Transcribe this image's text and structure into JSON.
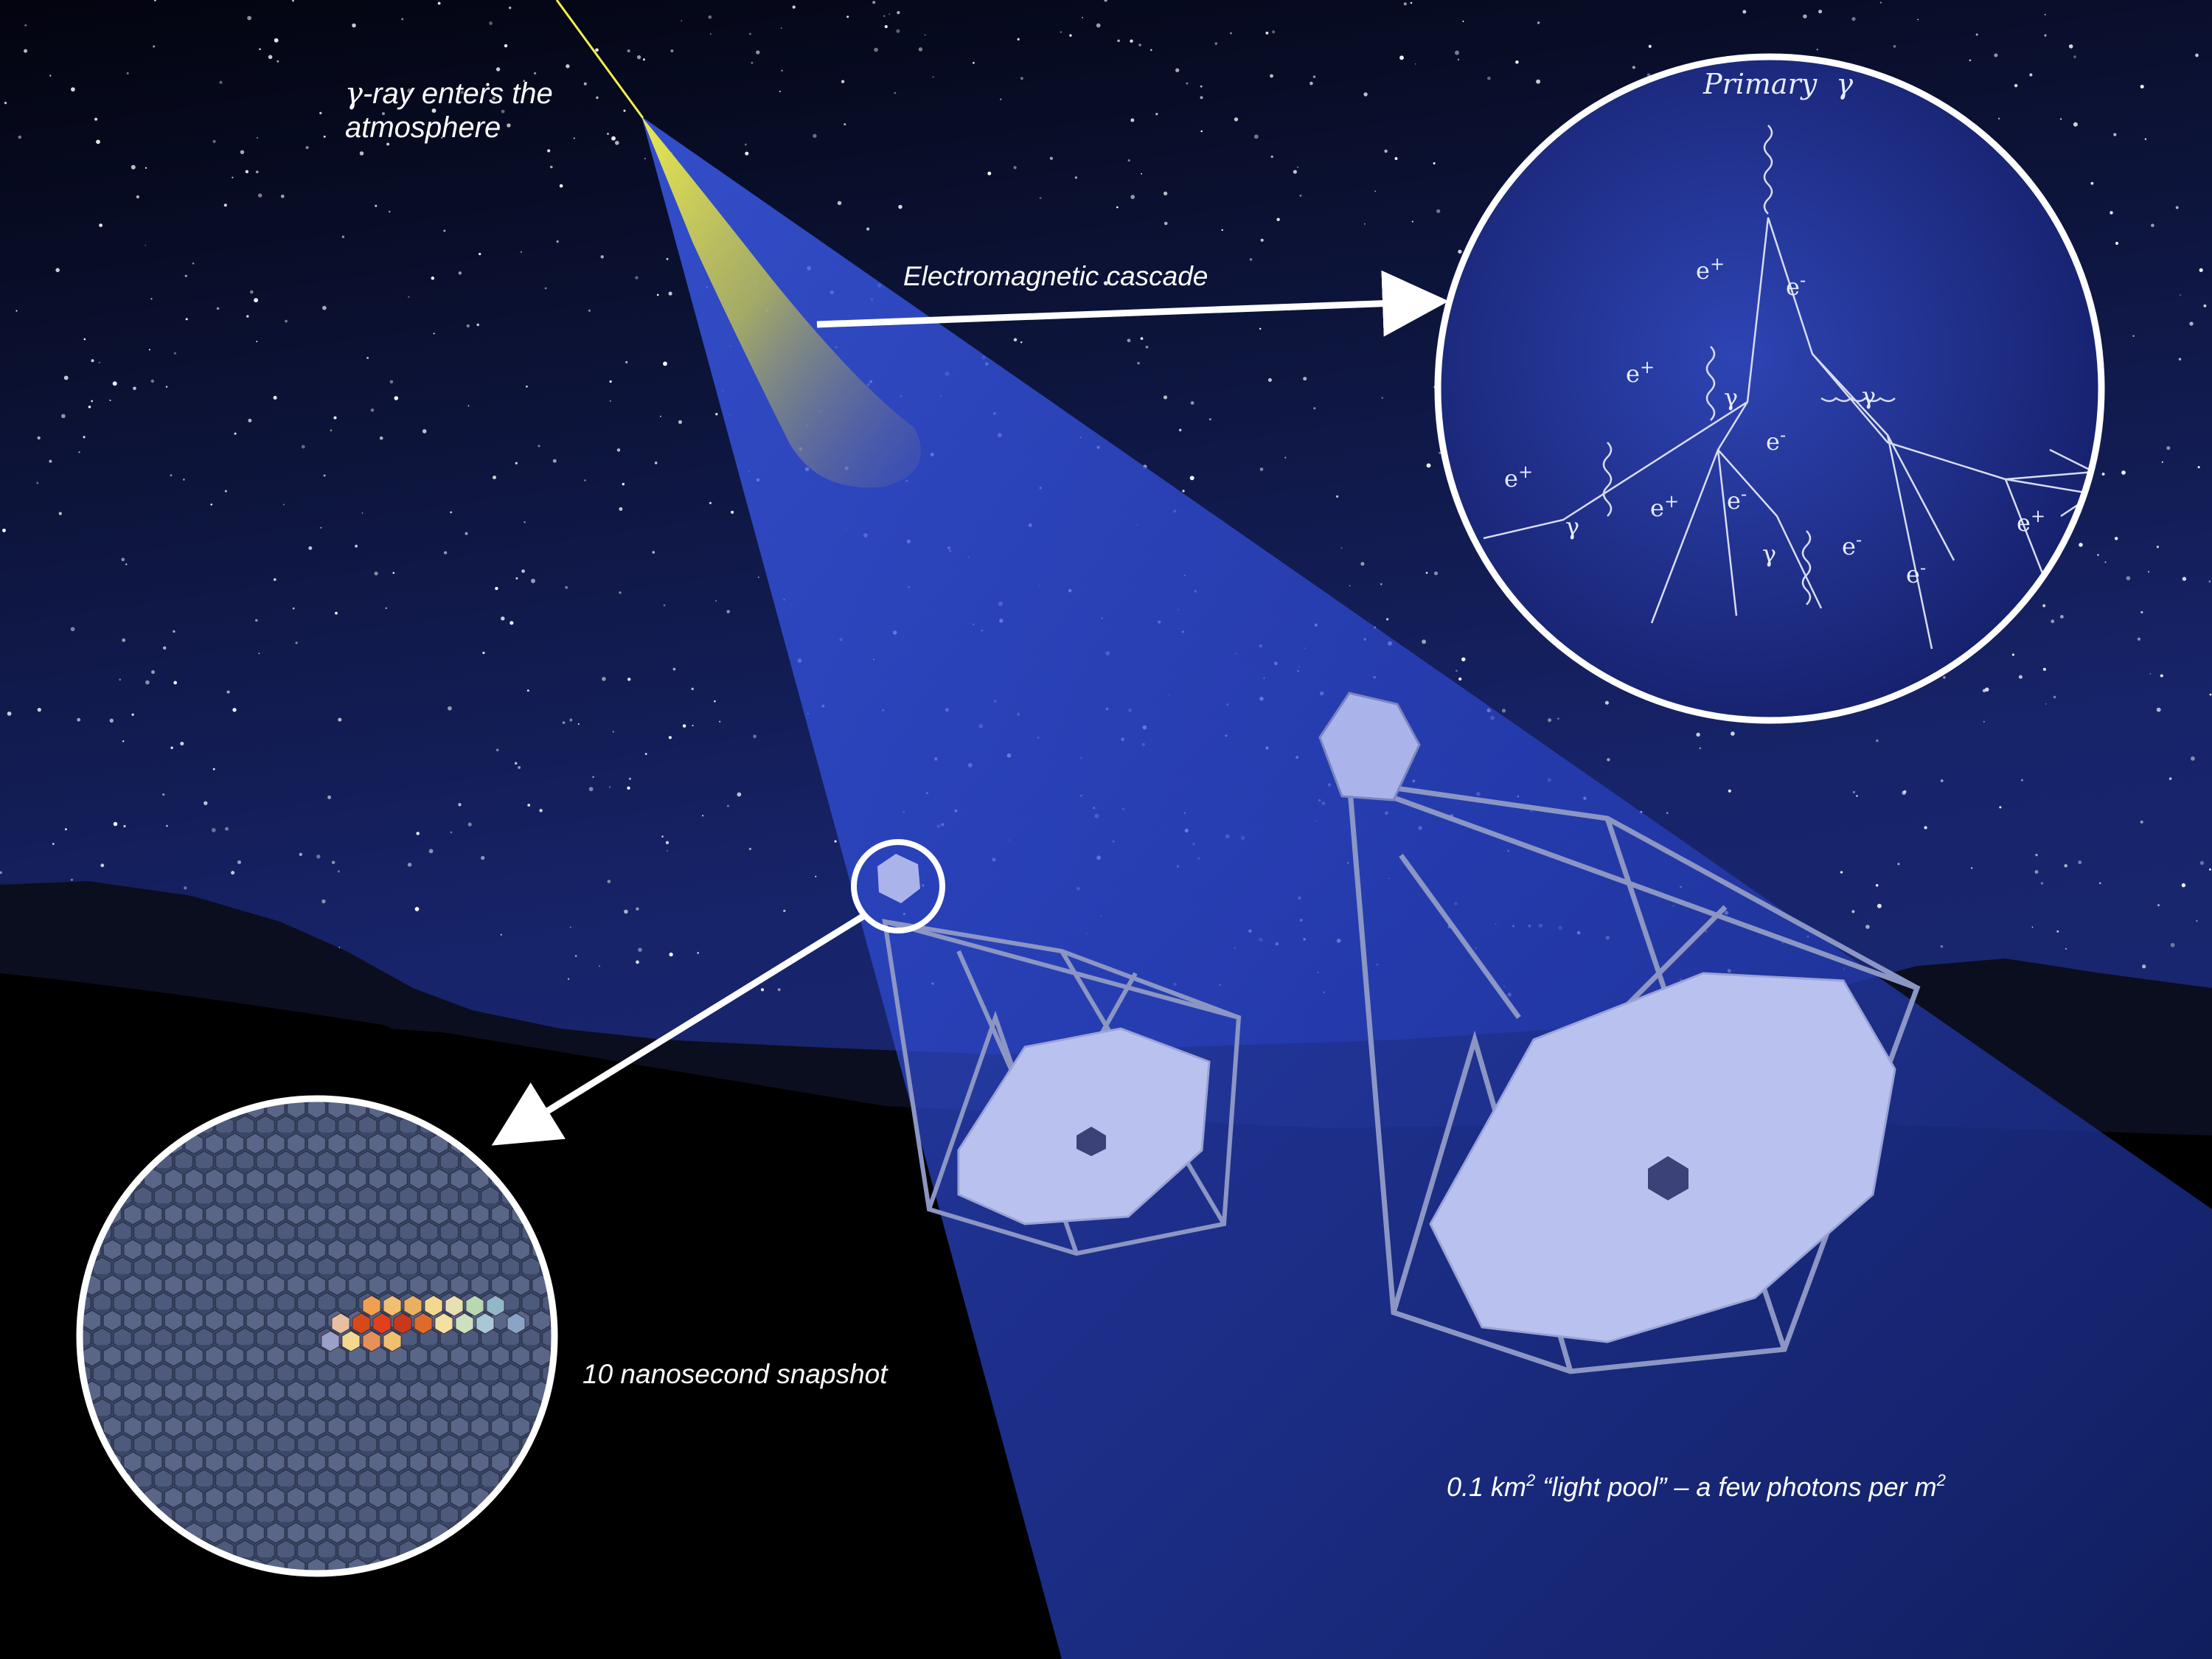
{
  "labels": {
    "entry_line1_symbol": "γ",
    "entry_line1_text": "-ray enters the",
    "entry_line2": "atmosphere",
    "cascade": "Electromagnetic cascade",
    "snapshot": "10 nanosecond snapshot",
    "pool_part1": "0.1 km",
    "pool_sup1": "2",
    "pool_part2": " “light pool” – a few photons per m",
    "pool_sup2": "2"
  },
  "cascade_diagram": {
    "primary_label": "Primary",
    "primary_symbol": "γ",
    "particles": [
      {
        "symbol": "e",
        "charge": "+"
      },
      {
        "symbol": "e",
        "charge": "-"
      },
      {
        "symbol": "e",
        "charge": "+"
      },
      {
        "symbol": "γ",
        "charge": ""
      },
      {
        "symbol": "γ",
        "charge": ""
      },
      {
        "symbol": "e",
        "charge": "-"
      },
      {
        "symbol": "e",
        "charge": "+"
      },
      {
        "symbol": "γ",
        "charge": ""
      },
      {
        "symbol": "e",
        "charge": "+"
      },
      {
        "symbol": "e",
        "charge": "-"
      },
      {
        "symbol": "γ",
        "charge": ""
      },
      {
        "symbol": "e",
        "charge": "-"
      },
      {
        "symbol": "e",
        "charge": "-"
      },
      {
        "symbol": "e",
        "charge": "+"
      }
    ]
  },
  "colors": {
    "sky_top": "#05081e",
    "sky_mid": "#17246a",
    "light_cone": "#3a57e0",
    "gamma_ray": "#f2ef4a",
    "telescope": "#b9c2ef",
    "callout_ring": "#ffffff",
    "camera_hot": "#e0401c"
  },
  "icons": {
    "telescope_small": "cherenkov-telescope-icon",
    "telescope_large": "cherenkov-telescope-icon",
    "camera_pixels": "hexagonal-camera-icon"
  }
}
